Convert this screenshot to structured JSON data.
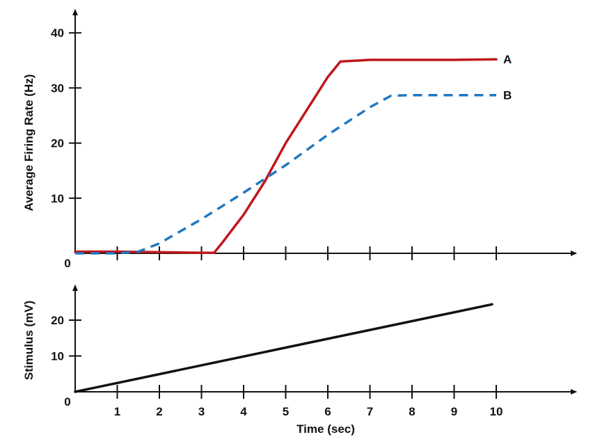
{
  "chart_data": [
    {
      "type": "line",
      "ylabel": "Average Firing Rate (Hz)",
      "xlim": [
        0,
        12
      ],
      "ylim": [
        0,
        40
      ],
      "y_ticks": [
        10,
        20,
        30,
        40
      ],
      "x_tick_positions": [
        1,
        2,
        3,
        4,
        5,
        6,
        7,
        8,
        9,
        10
      ],
      "origin_label": "0",
      "series": [
        {
          "name": "A",
          "color": "#c0161c",
          "style": "solid",
          "x": [
            0,
            1,
            2,
            3,
            3.3,
            3.5,
            4,
            4.5,
            5,
            5.5,
            6,
            6.3,
            7,
            8,
            9,
            10
          ],
          "y": [
            0.3,
            0.3,
            0.2,
            0.1,
            0.1,
            2,
            7,
            13,
            20,
            26,
            32,
            34.8,
            35.1,
            35.1,
            35.1,
            35.2
          ]
        },
        {
          "name": "B",
          "color": "#1f78c1",
          "style": "dashed",
          "x": [
            0,
            1,
            1.5,
            2,
            3,
            4,
            5,
            6,
            7,
            7.5,
            8,
            9,
            10
          ],
          "y": [
            0,
            0,
            0.3,
            1.8,
            6.2,
            11,
            16,
            21.5,
            26.5,
            28.6,
            28.7,
            28.7,
            28.7
          ]
        }
      ]
    },
    {
      "type": "line",
      "xlabel": "Time (sec)",
      "ylabel": "Stimulus (mV)",
      "xlim": [
        0,
        12
      ],
      "ylim": [
        0,
        28
      ],
      "x_ticks": [
        1,
        2,
        3,
        4,
        5,
        6,
        7,
        8,
        9,
        10
      ],
      "y_ticks": [
        10,
        20
      ],
      "origin_label": "0",
      "series": [
        {
          "color": "#111111",
          "style": "solid",
          "x": [
            0,
            9.9
          ],
          "y": [
            0,
            24.4
          ]
        }
      ]
    }
  ]
}
